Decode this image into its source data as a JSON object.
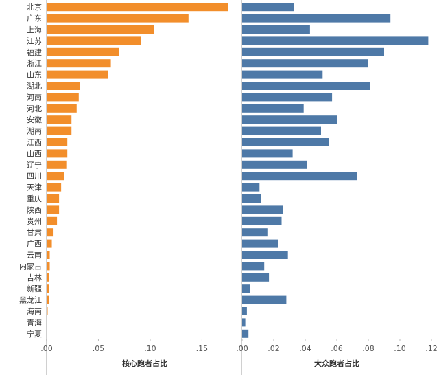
{
  "chart_data": [
    {
      "type": "bar",
      "orientation": "horizontal",
      "xlabel": "核心跑者占比",
      "xlim": [
        0,
        0.18
      ],
      "xticks": [
        0,
        0.05,
        0.1,
        0.15
      ],
      "xtick_labels": [
        ".00",
        ".05",
        ".10",
        ".15"
      ],
      "color": "#F28E2B",
      "categories": [
        "北京",
        "广东",
        "上海",
        "江苏",
        "福建",
        "浙江",
        "山东",
        "湖北",
        "河南",
        "河北",
        "安徽",
        "湖南",
        "江西",
        "山西",
        "辽宁",
        "四川",
        "天津",
        "重庆",
        "陕西",
        "贵州",
        "甘肃",
        "广西",
        "云南",
        "内蒙古",
        "吉林",
        "新疆",
        "黑龙江",
        "海南",
        "青海",
        "宁夏"
      ],
      "values": [
        0.175,
        0.137,
        0.104,
        0.091,
        0.07,
        0.062,
        0.059,
        0.032,
        0.031,
        0.029,
        0.024,
        0.024,
        0.02,
        0.02,
        0.019,
        0.017,
        0.014,
        0.012,
        0.012,
        0.01,
        0.006,
        0.005,
        0.003,
        0.003,
        0.002,
        0.002,
        0.002,
        0.001,
        0.0005,
        0.0002
      ]
    },
    {
      "type": "bar",
      "orientation": "horizontal",
      "xlabel": "大众跑者占比",
      "xlim": [
        0,
        0.12
      ],
      "xticks": [
        0,
        0.02,
        0.04,
        0.06,
        0.08,
        0.1,
        0.12
      ],
      "xtick_labels": [
        ".00",
        ".02",
        ".04",
        ".06",
        ".08",
        ".10",
        ".12"
      ],
      "color": "#4E79A7",
      "categories": [
        "北京",
        "广东",
        "上海",
        "江苏",
        "福建",
        "浙江",
        "山东",
        "湖北",
        "河南",
        "河北",
        "安徽",
        "湖南",
        "江西",
        "山西",
        "辽宁",
        "四川",
        "天津",
        "重庆",
        "陕西",
        "贵州",
        "甘肃",
        "广西",
        "云南",
        "内蒙古",
        "吉林",
        "新疆",
        "黑龙江",
        "海南",
        "青海",
        "宁夏"
      ],
      "values": [
        0.033,
        0.094,
        0.043,
        0.118,
        0.09,
        0.08,
        0.051,
        0.081,
        0.057,
        0.039,
        0.06,
        0.05,
        0.055,
        0.032,
        0.041,
        0.073,
        0.011,
        0.012,
        0.026,
        0.025,
        0.016,
        0.023,
        0.029,
        0.014,
        0.017,
        0.005,
        0.028,
        0.003,
        0.002,
        0.004
      ]
    }
  ]
}
